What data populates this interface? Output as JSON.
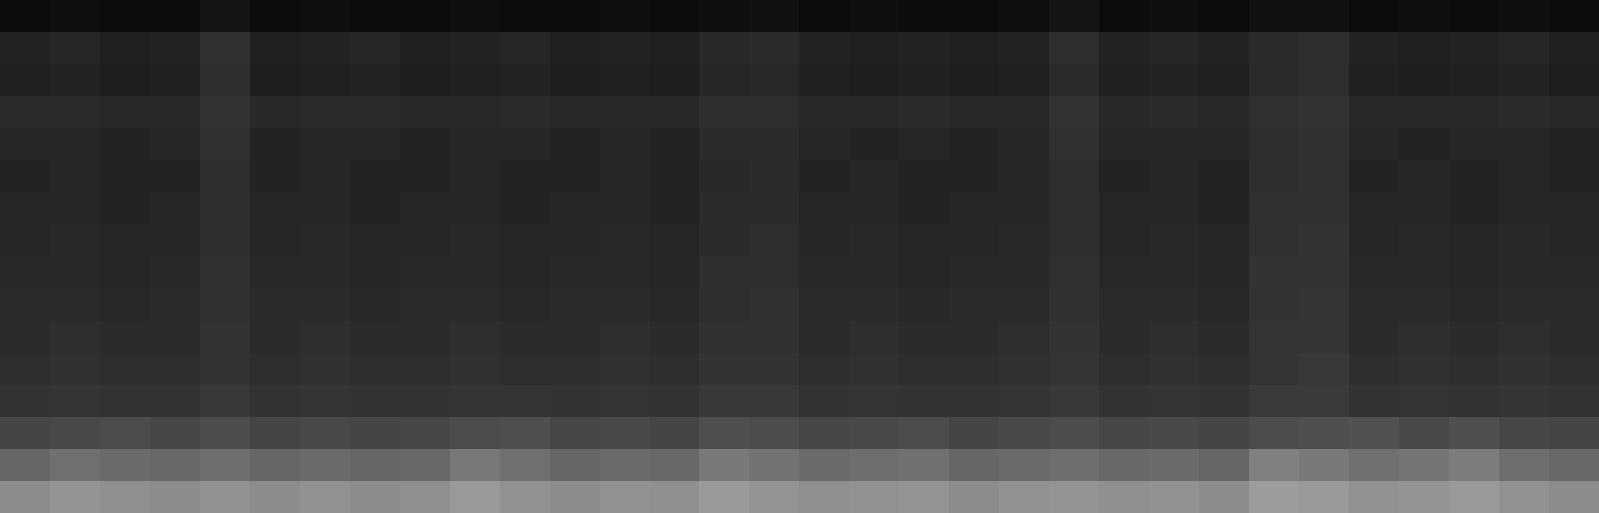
{
  "chart_data": {
    "type": "heatmap",
    "tick_labels": false,
    "color": "gray",
    "value_range": [
      0,
      1
    ],
    "cells": [
      [
        0.05,
        0.06,
        0.05,
        0.05,
        0.08,
        0.05,
        0.06,
        0.05,
        0.05,
        0.06,
        0.05,
        0.05,
        0.06,
        0.05,
        0.06,
        0.07,
        0.05,
        0.06,
        0.05,
        0.05,
        0.06,
        0.08,
        0.05,
        0.06,
        0.05,
        0.07,
        0.07,
        0.05,
        0.06,
        0.05,
        0.06,
        0.05
      ],
      [
        0.14,
        0.15,
        0.13,
        0.14,
        0.19,
        0.13,
        0.14,
        0.15,
        0.13,
        0.14,
        0.15,
        0.13,
        0.14,
        0.13,
        0.16,
        0.17,
        0.14,
        0.13,
        0.14,
        0.13,
        0.14,
        0.18,
        0.14,
        0.15,
        0.14,
        0.17,
        0.18,
        0.14,
        0.13,
        0.14,
        0.15,
        0.13
      ],
      [
        0.13,
        0.14,
        0.12,
        0.13,
        0.18,
        0.12,
        0.13,
        0.14,
        0.12,
        0.13,
        0.14,
        0.12,
        0.13,
        0.12,
        0.15,
        0.16,
        0.13,
        0.12,
        0.13,
        0.12,
        0.13,
        0.17,
        0.13,
        0.14,
        0.13,
        0.17,
        0.18,
        0.13,
        0.12,
        0.13,
        0.14,
        0.12
      ],
      [
        0.17,
        0.17,
        0.16,
        0.16,
        0.2,
        0.16,
        0.17,
        0.17,
        0.16,
        0.16,
        0.17,
        0.16,
        0.16,
        0.16,
        0.18,
        0.18,
        0.16,
        0.16,
        0.17,
        0.16,
        0.16,
        0.2,
        0.16,
        0.17,
        0.16,
        0.19,
        0.2,
        0.16,
        0.16,
        0.16,
        0.17,
        0.16
      ],
      [
        0.15,
        0.15,
        0.14,
        0.15,
        0.19,
        0.14,
        0.15,
        0.15,
        0.14,
        0.15,
        0.15,
        0.14,
        0.15,
        0.14,
        0.17,
        0.17,
        0.15,
        0.14,
        0.15,
        0.14,
        0.15,
        0.19,
        0.15,
        0.15,
        0.15,
        0.18,
        0.19,
        0.15,
        0.14,
        0.15,
        0.15,
        0.14
      ],
      [
        0.14,
        0.15,
        0.14,
        0.14,
        0.18,
        0.14,
        0.15,
        0.14,
        0.14,
        0.15,
        0.14,
        0.14,
        0.15,
        0.14,
        0.16,
        0.17,
        0.14,
        0.15,
        0.14,
        0.14,
        0.15,
        0.18,
        0.14,
        0.15,
        0.14,
        0.18,
        0.19,
        0.14,
        0.15,
        0.14,
        0.15,
        0.14
      ],
      [
        0.15,
        0.15,
        0.14,
        0.15,
        0.18,
        0.15,
        0.15,
        0.14,
        0.15,
        0.15,
        0.14,
        0.15,
        0.15,
        0.14,
        0.17,
        0.17,
        0.15,
        0.15,
        0.14,
        0.15,
        0.15,
        0.18,
        0.15,
        0.15,
        0.14,
        0.19,
        0.19,
        0.15,
        0.15,
        0.14,
        0.15,
        0.15
      ],
      [
        0.15,
        0.16,
        0.15,
        0.15,
        0.18,
        0.15,
        0.16,
        0.15,
        0.15,
        0.16,
        0.15,
        0.15,
        0.16,
        0.15,
        0.17,
        0.18,
        0.15,
        0.16,
        0.15,
        0.15,
        0.16,
        0.18,
        0.15,
        0.16,
        0.15,
        0.19,
        0.2,
        0.15,
        0.16,
        0.15,
        0.16,
        0.15
      ],
      [
        0.16,
        0.16,
        0.15,
        0.16,
        0.19,
        0.16,
        0.16,
        0.15,
        0.16,
        0.16,
        0.15,
        0.16,
        0.16,
        0.15,
        0.18,
        0.18,
        0.16,
        0.16,
        0.15,
        0.16,
        0.16,
        0.19,
        0.16,
        0.16,
        0.15,
        0.2,
        0.2,
        0.16,
        0.16,
        0.15,
        0.16,
        0.16
      ],
      [
        0.17,
        0.17,
        0.16,
        0.17,
        0.19,
        0.17,
        0.17,
        0.16,
        0.17,
        0.17,
        0.16,
        0.17,
        0.17,
        0.16,
        0.18,
        0.19,
        0.17,
        0.17,
        0.16,
        0.17,
        0.17,
        0.19,
        0.17,
        0.17,
        0.16,
        0.2,
        0.21,
        0.17,
        0.17,
        0.16,
        0.17,
        0.17
      ],
      [
        0.17,
        0.18,
        0.17,
        0.17,
        0.2,
        0.17,
        0.18,
        0.17,
        0.17,
        0.18,
        0.17,
        0.17,
        0.18,
        0.17,
        0.19,
        0.19,
        0.17,
        0.18,
        0.17,
        0.17,
        0.18,
        0.2,
        0.17,
        0.18,
        0.17,
        0.21,
        0.21,
        0.17,
        0.18,
        0.17,
        0.18,
        0.17
      ],
      [
        0.18,
        0.19,
        0.18,
        0.18,
        0.2,
        0.18,
        0.19,
        0.18,
        0.18,
        0.19,
        0.18,
        0.18,
        0.19,
        0.18,
        0.2,
        0.2,
        0.18,
        0.19,
        0.18,
        0.18,
        0.19,
        0.21,
        0.18,
        0.19,
        0.18,
        0.21,
        0.22,
        0.18,
        0.19,
        0.18,
        0.19,
        0.18
      ],
      [
        0.2,
        0.21,
        0.2,
        0.2,
        0.22,
        0.2,
        0.21,
        0.2,
        0.2,
        0.21,
        0.21,
        0.2,
        0.21,
        0.2,
        0.22,
        0.22,
        0.2,
        0.21,
        0.2,
        0.2,
        0.21,
        0.22,
        0.2,
        0.21,
        0.2,
        0.23,
        0.23,
        0.2,
        0.21,
        0.2,
        0.21,
        0.2
      ],
      [
        0.27,
        0.29,
        0.3,
        0.28,
        0.3,
        0.27,
        0.29,
        0.27,
        0.28,
        0.3,
        0.31,
        0.28,
        0.29,
        0.27,
        0.31,
        0.3,
        0.28,
        0.29,
        0.3,
        0.27,
        0.29,
        0.3,
        0.28,
        0.29,
        0.27,
        0.3,
        0.31,
        0.32,
        0.29,
        0.31,
        0.28,
        0.27
      ],
      [
        0.4,
        0.44,
        0.42,
        0.41,
        0.43,
        0.4,
        0.42,
        0.4,
        0.41,
        0.47,
        0.44,
        0.4,
        0.42,
        0.41,
        0.48,
        0.45,
        0.42,
        0.43,
        0.44,
        0.4,
        0.42,
        0.43,
        0.41,
        0.42,
        0.4,
        0.5,
        0.48,
        0.44,
        0.46,
        0.49,
        0.43,
        0.41
      ],
      [
        0.55,
        0.58,
        0.56,
        0.55,
        0.57,
        0.55,
        0.57,
        0.55,
        0.56,
        0.6,
        0.57,
        0.55,
        0.57,
        0.56,
        0.6,
        0.58,
        0.56,
        0.57,
        0.58,
        0.55,
        0.57,
        0.58,
        0.56,
        0.57,
        0.55,
        0.61,
        0.6,
        0.57,
        0.58,
        0.6,
        0.57,
        0.55
      ]
    ]
  }
}
